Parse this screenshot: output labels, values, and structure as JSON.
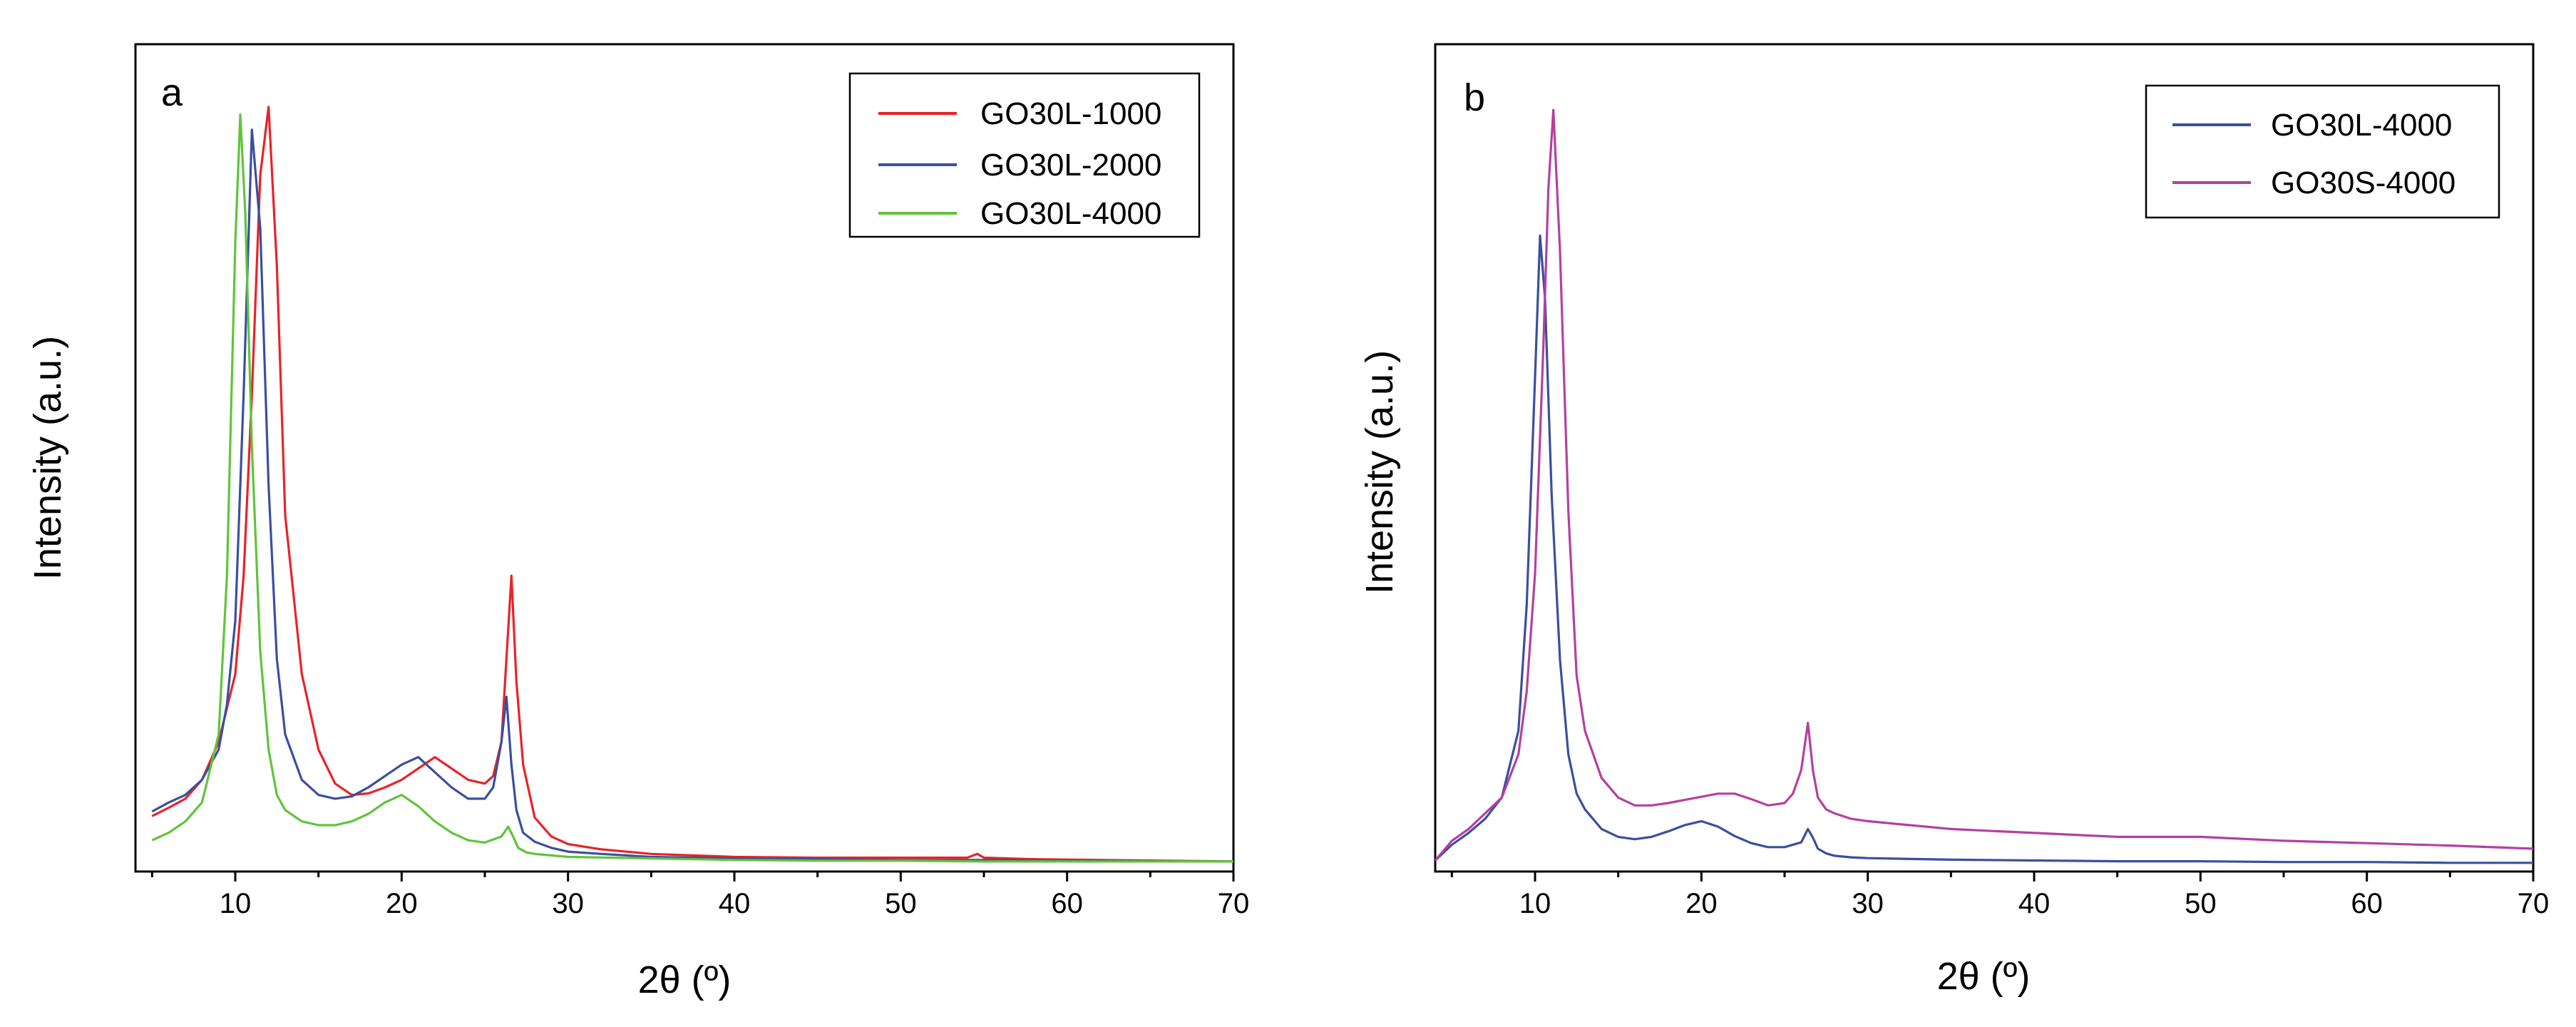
{
  "chart_data": [
    {
      "type": "line",
      "panel_label": "a",
      "xlabel": "2θ (º)",
      "ylabel": "Intensity (a.u.)",
      "xlim": [
        4,
        70
      ],
      "ylim": [
        0,
        1
      ],
      "xticks": [
        10,
        20,
        30,
        40,
        50,
        60,
        70
      ],
      "legend_position": "top-right",
      "series": [
        {
          "name": "GO30L-1000",
          "color": "#e8232a",
          "x": [
            5,
            6,
            7,
            8,
            9,
            10,
            10.5,
            11,
            11.5,
            12,
            12.5,
            13,
            14,
            15,
            16,
            17,
            18,
            19,
            20,
            21,
            22,
            23,
            24,
            25,
            25.5,
            26,
            26.3,
            26.6,
            26.9,
            27.3,
            28,
            29,
            30,
            32,
            35,
            40,
            45,
            50,
            54,
            54.6,
            55,
            58,
            62,
            66,
            70
          ],
          "y": [
            0.062,
            0.073,
            0.085,
            0.11,
            0.16,
            0.25,
            0.38,
            0.62,
            0.91,
            1.0,
            0.79,
            0.46,
            0.25,
            0.15,
            0.105,
            0.09,
            0.092,
            0.1,
            0.11,
            0.125,
            0.14,
            0.125,
            0.11,
            0.105,
            0.115,
            0.16,
            0.27,
            0.38,
            0.24,
            0.13,
            0.06,
            0.035,
            0.025,
            0.018,
            0.012,
            0.008,
            0.007,
            0.007,
            0.007,
            0.012,
            0.007,
            0.005,
            0.004,
            0.003,
            0.002
          ]
        },
        {
          "name": "GO30L-2000",
          "color": "#3a4f9e",
          "x": [
            5,
            6,
            7,
            8,
            9,
            9.5,
            10,
            10.5,
            11,
            11.5,
            12,
            12.5,
            13,
            14,
            15,
            16,
            17,
            18,
            19,
            20,
            21,
            22,
            23,
            24,
            25,
            25.5,
            26,
            26.3,
            26.6,
            26.9,
            27.3,
            28,
            29,
            30,
            32,
            35,
            40,
            45,
            50,
            55,
            60,
            65,
            70
          ],
          "y": [
            0.068,
            0.08,
            0.09,
            0.11,
            0.15,
            0.21,
            0.32,
            0.62,
            0.97,
            0.84,
            0.5,
            0.27,
            0.17,
            0.11,
            0.09,
            0.085,
            0.088,
            0.1,
            0.115,
            0.13,
            0.14,
            0.12,
            0.1,
            0.085,
            0.085,
            0.1,
            0.16,
            0.22,
            0.13,
            0.07,
            0.04,
            0.028,
            0.02,
            0.015,
            0.012,
            0.008,
            0.006,
            0.005,
            0.004,
            0.004,
            0.003,
            0.002,
            0.002
          ]
        },
        {
          "name": "GO30L-4000",
          "color": "#5fc43a",
          "x": [
            5,
            6,
            7,
            8,
            9,
            9.5,
            10,
            10.3,
            10.6,
            11,
            11.5,
            12,
            12.5,
            13,
            14,
            15,
            16,
            17,
            18,
            19,
            20,
            21,
            22,
            23,
            24,
            25,
            26,
            26.4,
            26.7,
            27,
            27.5,
            28,
            29,
            30,
            35,
            40,
            45,
            50,
            55,
            60,
            65,
            70
          ],
          "y": [
            0.03,
            0.04,
            0.055,
            0.08,
            0.17,
            0.38,
            0.82,
            0.99,
            0.86,
            0.55,
            0.28,
            0.15,
            0.09,
            0.07,
            0.055,
            0.05,
            0.05,
            0.055,
            0.065,
            0.08,
            0.09,
            0.075,
            0.055,
            0.04,
            0.03,
            0.027,
            0.035,
            0.048,
            0.035,
            0.02,
            0.014,
            0.012,
            0.01,
            0.008,
            0.006,
            0.004,
            0.003,
            0.003,
            0.002,
            0.002,
            0.002,
            0.002
          ]
        }
      ]
    },
    {
      "type": "line",
      "panel_label": "b",
      "xlabel": "2θ (º)",
      "ylabel": "Intensity (a.u.)",
      "xlim": [
        4,
        70
      ],
      "ylim": [
        0,
        1
      ],
      "xticks": [
        10,
        20,
        30,
        40,
        50,
        60,
        70
      ],
      "legend_position": "top-right",
      "series": [
        {
          "name": "GO30L-4000",
          "color": "#3a4f9e",
          "x": [
            4,
            5,
            6,
            7,
            8,
            9,
            9.5,
            10,
            10.3,
            10.6,
            11,
            11.5,
            12,
            12.5,
            13,
            14,
            15,
            16,
            17,
            18,
            19,
            20,
            21,
            22,
            23,
            24,
            25,
            26,
            26.4,
            26.7,
            27,
            27.5,
            28,
            29,
            30,
            35,
            40,
            45,
            50,
            55,
            60,
            65,
            70
          ],
          "y": [
            0.005,
            0.025,
            0.04,
            0.058,
            0.085,
            0.17,
            0.33,
            0.62,
            0.8,
            0.72,
            0.47,
            0.26,
            0.14,
            0.09,
            0.07,
            0.045,
            0.035,
            0.032,
            0.035,
            0.042,
            0.05,
            0.055,
            0.048,
            0.036,
            0.027,
            0.022,
            0.022,
            0.028,
            0.045,
            0.034,
            0.02,
            0.014,
            0.011,
            0.009,
            0.008,
            0.006,
            0.005,
            0.004,
            0.004,
            0.003,
            0.003,
            0.002,
            0.002
          ]
        },
        {
          "name": "GO30S-4000",
          "color": "#b5409f",
          "x": [
            4,
            5,
            6,
            7,
            8,
            9,
            9.5,
            10,
            10.5,
            10.8,
            11.1,
            11.5,
            12,
            12.5,
            13,
            14,
            15,
            16,
            17,
            18,
            19,
            20,
            21,
            22,
            23,
            24,
            25,
            25.5,
            26,
            26.4,
            26.7,
            27,
            27.5,
            28,
            29,
            30,
            35,
            40,
            45,
            50,
            55,
            60,
            65,
            70
          ],
          "y": [
            0.005,
            0.03,
            0.045,
            0.065,
            0.085,
            0.14,
            0.22,
            0.37,
            0.66,
            0.86,
            0.96,
            0.78,
            0.45,
            0.24,
            0.17,
            0.11,
            0.085,
            0.075,
            0.075,
            0.078,
            0.082,
            0.086,
            0.09,
            0.09,
            0.083,
            0.075,
            0.078,
            0.09,
            0.12,
            0.18,
            0.12,
            0.085,
            0.07,
            0.065,
            0.058,
            0.055,
            0.045,
            0.04,
            0.035,
            0.035,
            0.03,
            0.027,
            0.024,
            0.02
          ]
        }
      ]
    }
  ]
}
